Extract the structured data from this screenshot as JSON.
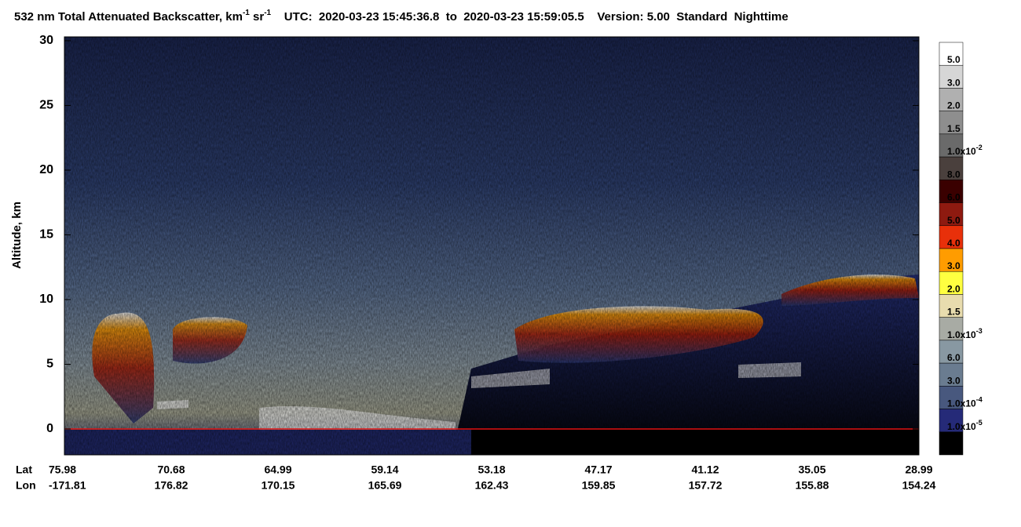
{
  "chart_data": {
    "type": "curtain",
    "title_parts": [
      {
        "text": "532 nm Total Attenuated Backscatter, km"
      },
      {
        "text": "-1",
        "sup": true
      },
      {
        "text": " sr"
      },
      {
        "text": "-1",
        "sup": true
      },
      {
        "text": "    UTC:  2020-03-23 15:45:36.8  to  2020-03-23 15:59:05.5    Version: 5.00  Standard  Nighttime"
      }
    ],
    "y_label": "Altitude, km",
    "ylim": [
      -2,
      30.3
    ],
    "yticks": [
      0,
      5,
      10,
      15,
      20,
      25,
      30
    ],
    "x_rows": [
      {
        "name": "Lat",
        "labels": [
          "75.98",
          "70.68",
          "64.99",
          "59.14",
          "53.18",
          "47.17",
          "41.12",
          "35.05",
          "28.99"
        ]
      },
      {
        "name": "Lon",
        "labels": [
          "-171.81",
          "176.82",
          "170.15",
          "165.69",
          "162.43",
          "159.85",
          "157.72",
          "155.88",
          "154.24"
        ]
      }
    ],
    "colorbar": {
      "colors": [
        "#ffffff",
        "#d6d6d6",
        "#b0b0b0",
        "#8e8e8e",
        "#6a6a6a",
        "#4a403d",
        "#3a0000",
        "#8e1a10",
        "#e8300a",
        "#ff9c00",
        "#ffff40",
        "#e8dcae",
        "#a8aba4",
        "#8898a2",
        "#6a7c90",
        "#48587e",
        "#252a78",
        "#000000"
      ],
      "labels": [
        {
          "text": "5.0"
        },
        {
          "text": "3.0"
        },
        {
          "text": "2.0"
        },
        {
          "text": "1.5"
        },
        {
          "text": "1.0x10",
          "exp": "-2"
        },
        {
          "text": "8.0"
        },
        {
          "text": "6.0"
        },
        {
          "text": "5.0"
        },
        {
          "text": "4.0"
        },
        {
          "text": "3.0"
        },
        {
          "text": "2.0"
        },
        {
          "text": "1.5"
        },
        {
          "text": "1.0x10",
          "exp": "-3"
        },
        {
          "text": "6.0"
        },
        {
          "text": "3.0"
        },
        {
          "text": "1.0x10",
          "exp": "-4"
        },
        {
          "text": "1.0x10",
          "exp": "-5"
        },
        null
      ]
    }
  }
}
